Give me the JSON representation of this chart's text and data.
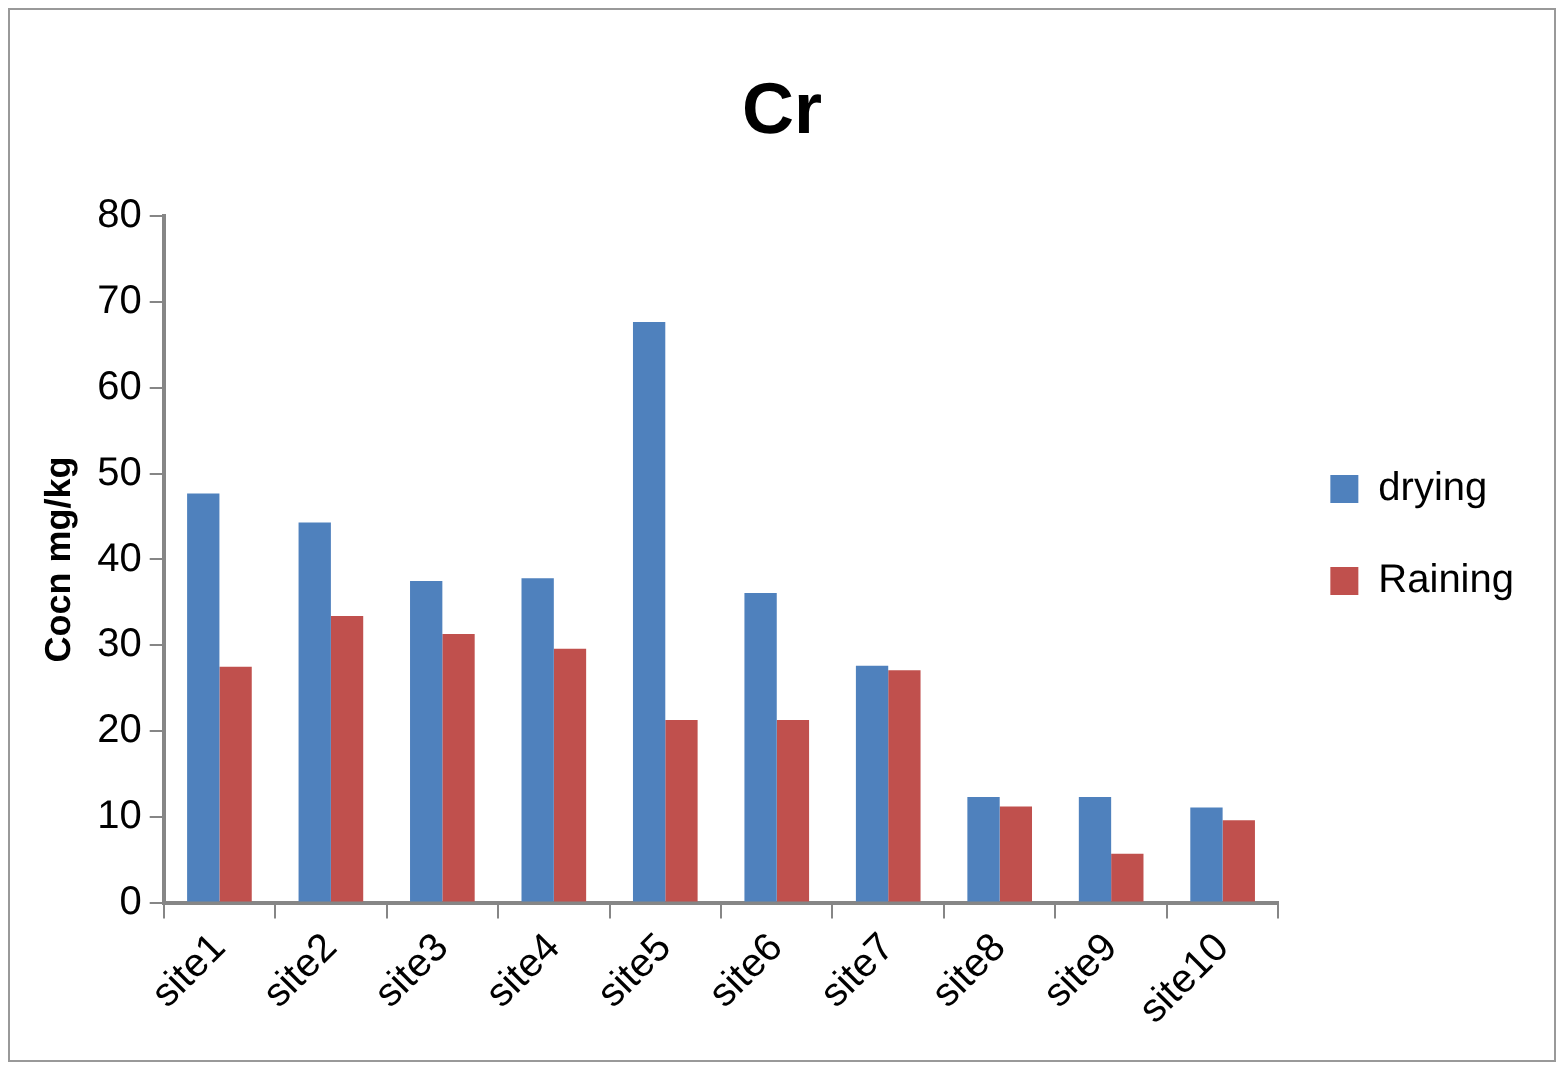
{
  "chart_data": {
    "type": "bar",
    "title": "Cr",
    "ylabel": "Cocn mg/kg",
    "categories": [
      "site1",
      "site2",
      "site3",
      "site4",
      "site5",
      "site6",
      "site7",
      "site8",
      "site9",
      "site10"
    ],
    "series": [
      {
        "name": "drying",
        "color": "#4f81bd",
        "values": [
          47.7,
          44.3,
          37.5,
          37.8,
          67.7,
          36.1,
          27.6,
          12.3,
          12.3,
          11.1
        ]
      },
      {
        "name": "Raining",
        "color": "#c0504d",
        "values": [
          27.5,
          33.4,
          31.3,
          29.6,
          21.3,
          21.3,
          27.1,
          11.2,
          5.7,
          9.6
        ]
      }
    ],
    "ylim": [
      0,
      80
    ],
    "yticks": [
      0,
      10,
      20,
      30,
      40,
      50,
      60,
      70,
      80
    ],
    "grid": false,
    "legend": "right"
  }
}
